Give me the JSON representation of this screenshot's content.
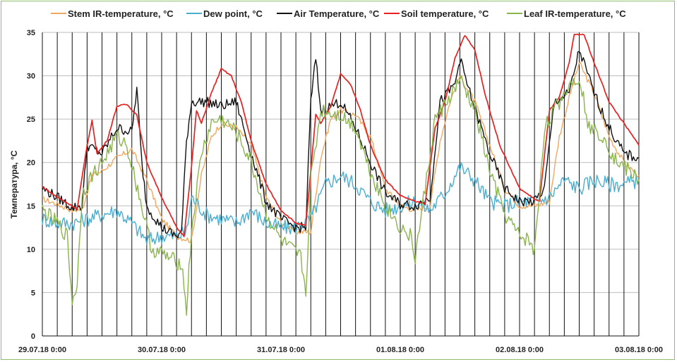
{
  "chart_data": {
    "type": "line",
    "title": "",
    "xlabel": "",
    "ylabel": "Температура, °С",
    "ylim": [
      0,
      35
    ],
    "yticks": [
      0,
      5,
      10,
      15,
      20,
      25,
      30,
      35
    ],
    "xlim": [
      "29.07.18 0:00",
      "03.08.18 0:00"
    ],
    "xtick_labels": [
      "29.07.18 0:00",
      "30.07.18 0:00",
      "31.07.18 0:00",
      "01.08.18 0:00",
      "02.08.18 0:00",
      "03.08.18 0:00"
    ],
    "vertical_grid_every_hours": 3,
    "horizontal_grid": true,
    "legend_position": "top",
    "series": [
      {
        "name": "Stem IR-temperature, °C",
        "color": "#f0a860",
        "points": [
          [
            "29.07.18 0:00",
            15.8
          ],
          [
            "29.07.18 3:00",
            15.2
          ],
          [
            "29.07.18 6:00",
            14.5
          ],
          [
            "29.07.18 8:00",
            14.6
          ],
          [
            "29.07.18 10:00",
            18.5
          ],
          [
            "29.07.18 12:00",
            19.0
          ],
          [
            "29.07.18 15:00",
            20.5
          ],
          [
            "29.07.18 18:00",
            21.5
          ],
          [
            "29.07.18 21:00",
            18.0
          ],
          [
            "30.07.18 0:00",
            13.5
          ],
          [
            "30.07.18 3:00",
            11.5
          ],
          [
            "30.07.18 6:00",
            11.0
          ],
          [
            "30.07.18 8:00",
            18.5
          ],
          [
            "30.07.18 10:00",
            23.0
          ],
          [
            "30.07.18 12:00",
            24.5
          ],
          [
            "30.07.18 15:00",
            24.0
          ],
          [
            "30.07.18 18:00",
            22.0
          ],
          [
            "30.07.18 21:00",
            16.0
          ],
          [
            "31.07.18 0:00",
            13.0
          ],
          [
            "31.07.18 3:00",
            12.0
          ],
          [
            "31.07.18 6:00",
            12.0
          ],
          [
            "31.07.18 8:00",
            20.5
          ],
          [
            "31.07.18 10:00",
            25.0
          ],
          [
            "31.07.18 12:00",
            26.0
          ],
          [
            "31.07.18 15:00",
            25.5
          ],
          [
            "31.07.18 18:00",
            23.0
          ],
          [
            "31.07.18 21:00",
            17.0
          ],
          [
            "01.08.18 0:00",
            15.0
          ],
          [
            "01.08.18 3:00",
            14.5
          ],
          [
            "01.08.18 6:00",
            15.0
          ],
          [
            "01.08.18 8:00",
            22.5
          ],
          [
            "01.08.18 10:00",
            27.0
          ],
          [
            "01.08.18 12:00",
            30.0
          ],
          [
            "01.08.18 15:00",
            27.0
          ],
          [
            "01.08.18 18:00",
            22.0
          ],
          [
            "01.08.18 21:00",
            17.0
          ],
          [
            "02.08.18 0:00",
            15.0
          ],
          [
            "02.08.18 3:00",
            15.0
          ],
          [
            "02.08.18 6:00",
            15.5
          ],
          [
            "02.08.18 8:00",
            23.0
          ],
          [
            "02.08.18 10:00",
            27.5
          ],
          [
            "02.08.18 12:00",
            31.5
          ],
          [
            "02.08.18 15:00",
            28.0
          ],
          [
            "02.08.18 18:00",
            23.0
          ],
          [
            "02.08.18 21:00",
            20.0
          ],
          [
            "03.08.18 0:00",
            18.5
          ]
        ]
      },
      {
        "name": "Dew point, °C",
        "color": "#4aaed0",
        "points": [
          [
            "29.07.18 0:00",
            13.5
          ],
          [
            "29.07.18 3:00",
            13.0
          ],
          [
            "29.07.18 6:00",
            13.0
          ],
          [
            "29.07.18 9:00",
            13.5
          ],
          [
            "29.07.18 12:00",
            14.0
          ],
          [
            "29.07.18 15:00",
            14.5
          ],
          [
            "29.07.18 18:00",
            13.0
          ],
          [
            "29.07.18 21:00",
            11.0
          ],
          [
            "30.07.18 0:00",
            11.5
          ],
          [
            "30.07.18 3:00",
            11.5
          ],
          [
            "30.07.18 5:00",
            12.0
          ],
          [
            "30.07.18 6:00",
            16.0
          ],
          [
            "30.07.18 9:00",
            14.0
          ],
          [
            "30.07.18 12:00",
            13.5
          ],
          [
            "30.07.18 15:00",
            13.0
          ],
          [
            "30.07.18 18:00",
            14.5
          ],
          [
            "30.07.18 21:00",
            13.0
          ],
          [
            "31.07.18 0:00",
            12.5
          ],
          [
            "31.07.18 3:00",
            12.5
          ],
          [
            "31.07.18 6:00",
            13.5
          ],
          [
            "31.07.18 9:00",
            17.5
          ],
          [
            "31.07.18 12:00",
            18.5
          ],
          [
            "31.07.18 15:00",
            17.5
          ],
          [
            "31.07.18 18:00",
            15.5
          ],
          [
            "31.07.18 21:00",
            14.5
          ],
          [
            "01.08.18 0:00",
            15.0
          ],
          [
            "01.08.18 3:00",
            15.5
          ],
          [
            "01.08.18 6:00",
            14.5
          ],
          [
            "01.08.18 9:00",
            16.5
          ],
          [
            "01.08.18 12:00",
            19.5
          ],
          [
            "01.08.18 15:00",
            18.0
          ],
          [
            "01.08.18 18:00",
            15.5
          ],
          [
            "01.08.18 21:00",
            15.0
          ],
          [
            "02.08.18 0:00",
            15.5
          ],
          [
            "02.08.18 3:00",
            15.5
          ],
          [
            "02.08.18 6:00",
            16.0
          ],
          [
            "02.08.18 9:00",
            18.0
          ],
          [
            "02.08.18 12:00",
            17.0
          ],
          [
            "02.08.18 15:00",
            18.0
          ],
          [
            "02.08.18 18:00",
            17.5
          ],
          [
            "02.08.18 21:00",
            17.5
          ],
          [
            "03.08.18 0:00",
            18.0
          ]
        ]
      },
      {
        "name": "Air Temperature, °C",
        "color": "#111111",
        "points": [
          [
            "29.07.18 0:00",
            17.0
          ],
          [
            "29.07.18 3:00",
            16.0
          ],
          [
            "29.07.18 6:00",
            14.8
          ],
          [
            "29.07.18 8:00",
            15.0
          ],
          [
            "29.07.18 9:00",
            22.0
          ],
          [
            "29.07.18 12:00",
            21.0
          ],
          [
            "29.07.18 15:00",
            24.0
          ],
          [
            "29.07.18 18:00",
            23.5
          ],
          [
            "29.07.18 19:00",
            28.5
          ],
          [
            "29.07.18 20:00",
            20.0
          ],
          [
            "29.07.18 21:00",
            15.0
          ],
          [
            "30.07.18 0:00",
            12.5
          ],
          [
            "30.07.18 3:00",
            11.5
          ],
          [
            "30.07.18 4:00",
            12.0
          ],
          [
            "30.07.18 5:00",
            22.5
          ],
          [
            "30.07.18 6:00",
            27.0
          ],
          [
            "30.07.18 9:00",
            27.0
          ],
          [
            "30.07.18 12:00",
            26.5
          ],
          [
            "30.07.18 15:00",
            27.0
          ],
          [
            "30.07.18 18:00",
            21.0
          ],
          [
            "30.07.18 21:00",
            15.5
          ],
          [
            "31.07.18 0:00",
            13.5
          ],
          [
            "31.07.18 3:00",
            12.5
          ],
          [
            "31.07.18 5:00",
            12.5
          ],
          [
            "31.07.18 6:00",
            27.0
          ],
          [
            "31.07.18 7:00",
            32.0
          ],
          [
            "31.07.18 8:00",
            26.0
          ],
          [
            "31.07.18 12:00",
            27.0
          ],
          [
            "31.07.18 15:00",
            24.0
          ],
          [
            "31.07.18 18:00",
            20.0
          ],
          [
            "31.07.18 21:00",
            16.5
          ],
          [
            "01.08.18 0:00",
            15.2
          ],
          [
            "01.08.18 3:00",
            15.0
          ],
          [
            "01.08.18 6:00",
            16.0
          ],
          [
            "01.08.18 8:00",
            27.0
          ],
          [
            "01.08.18 11:00",
            29.0
          ],
          [
            "01.08.18 12:00",
            32.0
          ],
          [
            "01.08.18 14:00",
            28.0
          ],
          [
            "01.08.18 18:00",
            21.0
          ],
          [
            "01.08.18 21:00",
            17.0
          ],
          [
            "02.08.18 0:00",
            15.5
          ],
          [
            "02.08.18 3:00",
            15.5
          ],
          [
            "02.08.18 5:00",
            17.0
          ],
          [
            "02.08.18 7:00",
            27.0
          ],
          [
            "02.08.18 10:00",
            28.0
          ],
          [
            "02.08.18 12:00",
            33.0
          ],
          [
            "02.08.18 15:00",
            28.0
          ],
          [
            "02.08.18 18:00",
            24.0
          ],
          [
            "02.08.18 21:00",
            21.0
          ],
          [
            "03.08.18 0:00",
            20.5
          ]
        ]
      },
      {
        "name": "Soil temperature, °C",
        "color": "#e82020",
        "points": [
          [
            "29.07.18 0:00",
            17.2
          ],
          [
            "29.07.18 3:00",
            16.0
          ],
          [
            "29.07.18 6:00",
            15.0
          ],
          [
            "29.07.18 7:00",
            14.6
          ],
          [
            "29.07.18 9:00",
            22.0
          ],
          [
            "29.07.18 10:00",
            24.8
          ],
          [
            "29.07.18 11:00",
            21.0
          ],
          [
            "29.07.18 13:00",
            22.5
          ],
          [
            "29.07.18 15:00",
            26.5
          ],
          [
            "29.07.18 17:00",
            26.7
          ],
          [
            "29.07.18 19:00",
            25.5
          ],
          [
            "29.07.18 21:00",
            20.0
          ],
          [
            "30.07.18 0:00",
            16.0
          ],
          [
            "30.07.18 3:00",
            12.5
          ],
          [
            "30.07.18 4:30",
            11.5
          ],
          [
            "30.07.18 6:00",
            19.5
          ],
          [
            "30.07.18 7:00",
            26.0
          ],
          [
            "30.07.18 8:00",
            24.5
          ],
          [
            "30.07.18 10:00",
            28.0
          ],
          [
            "30.07.18 12:00",
            30.8
          ],
          [
            "30.07.18 14:00",
            30.0
          ],
          [
            "30.07.18 16:00",
            27.0
          ],
          [
            "30.07.18 18:00",
            22.5
          ],
          [
            "30.07.18 21:00",
            17.5
          ],
          [
            "31.07.18 0:00",
            14.5
          ],
          [
            "31.07.18 3:00",
            13.0
          ],
          [
            "31.07.18 5:00",
            12.7
          ],
          [
            "31.07.18 7:00",
            25.5
          ],
          [
            "31.07.18 8:00",
            24.5
          ],
          [
            "31.07.18 10:00",
            26.5
          ],
          [
            "31.07.18 12:00",
            30.2
          ],
          [
            "31.07.18 14:00",
            29.0
          ],
          [
            "31.07.18 16:00",
            26.0
          ],
          [
            "31.07.18 18:00",
            22.0
          ],
          [
            "31.07.18 21:00",
            18.0
          ],
          [
            "01.08.18 0:00",
            16.2
          ],
          [
            "01.08.18 3:00",
            15.5
          ],
          [
            "01.08.18 5:00",
            15.2
          ],
          [
            "01.08.18 7:00",
            24.0
          ],
          [
            "01.08.18 9:00",
            27.0
          ],
          [
            "01.08.18 11:00",
            32.0
          ],
          [
            "01.08.18 13:00",
            34.7
          ],
          [
            "01.08.18 15:00",
            33.0
          ],
          [
            "01.08.18 17:00",
            28.0
          ],
          [
            "01.08.18 20:00",
            22.0
          ],
          [
            "02.08.18 0:00",
            17.0
          ],
          [
            "02.08.18 3:00",
            15.8
          ],
          [
            "02.08.18 4:00",
            15.5
          ],
          [
            "02.08.18 6:00",
            26.0
          ],
          [
            "02.08.18 8:00",
            27.5
          ],
          [
            "02.08.18 10:00",
            31.5
          ],
          [
            "02.08.18 11:00",
            34.8
          ],
          [
            "02.08.18 13:00",
            34.7
          ],
          [
            "02.08.18 15:00",
            31.5
          ],
          [
            "02.08.18 18:00",
            27.0
          ],
          [
            "02.08.18 21:00",
            24.5
          ],
          [
            "03.08.18 0:00",
            22.0
          ]
        ]
      },
      {
        "name": "Leaf IR-temperature, °C",
        "color": "#8ab44c",
        "points": [
          [
            "29.07.18 0:00",
            14.5
          ],
          [
            "29.07.18 3:00",
            13.0
          ],
          [
            "29.07.18 5:00",
            11.5
          ],
          [
            "29.07.18 6:00",
            4.0
          ],
          [
            "29.07.18 7:00",
            6.0
          ],
          [
            "29.07.18 8:00",
            16.5
          ],
          [
            "29.07.18 10:00",
            18.5
          ],
          [
            "29.07.18 12:00",
            20.0
          ],
          [
            "29.07.18 15:00",
            23.0
          ],
          [
            "29.07.18 17:00",
            22.0
          ],
          [
            "29.07.18 20:00",
            15.0
          ],
          [
            "29.07.18 22:00",
            10.0
          ],
          [
            "30.07.18 0:00",
            9.5
          ],
          [
            "30.07.18 3:00",
            8.5
          ],
          [
            "30.07.18 4:00",
            8.5
          ],
          [
            "30.07.18 5:00",
            3.0
          ],
          [
            "30.07.18 6:00",
            12.0
          ],
          [
            "30.07.18 8:00",
            21.0
          ],
          [
            "30.07.18 10:00",
            24.5
          ],
          [
            "30.07.18 12:00",
            25.0
          ],
          [
            "30.07.18 15:00",
            23.5
          ],
          [
            "30.07.18 18:00",
            20.0
          ],
          [
            "30.07.18 21:00",
            14.0
          ],
          [
            "31.07.18 0:00",
            11.0
          ],
          [
            "31.07.18 3:00",
            9.5
          ],
          [
            "31.07.18 4:00",
            9.0
          ],
          [
            "31.07.18 5:00",
            5.0
          ],
          [
            "31.07.18 6:00",
            18.0
          ],
          [
            "31.07.18 8:00",
            26.0
          ],
          [
            "31.07.18 12:00",
            25.5
          ],
          [
            "31.07.18 15:00",
            24.0
          ],
          [
            "31.07.18 18:00",
            19.0
          ],
          [
            "31.07.18 21:00",
            15.0
          ],
          [
            "01.08.18 0:00",
            12.5
          ],
          [
            "01.08.18 2:00",
            11.5
          ],
          [
            "01.08.18 3:00",
            9.0
          ],
          [
            "01.08.18 5:00",
            17.0
          ],
          [
            "01.08.18 7:00",
            25.0
          ],
          [
            "01.08.18 10:00",
            27.5
          ],
          [
            "01.08.18 12:00",
            29.5
          ],
          [
            "01.08.18 15:00",
            26.0
          ],
          [
            "01.08.18 18:00",
            19.0
          ],
          [
            "01.08.18 21:00",
            14.0
          ],
          [
            "02.08.18 0:00",
            11.5
          ],
          [
            "02.08.18 2:00",
            11.0
          ],
          [
            "02.08.18 3:00",
            9.5
          ],
          [
            "02.08.18 5:00",
            24.0
          ],
          [
            "02.08.18 8:00",
            27.0
          ],
          [
            "02.08.18 10:00",
            29.0
          ],
          [
            "02.08.18 12:00",
            30.0
          ],
          [
            "02.08.18 14:00",
            24.0
          ],
          [
            "02.08.18 17:00",
            23.0
          ],
          [
            "02.08.18 19:00",
            20.5
          ],
          [
            "02.08.18 22:00",
            19.0
          ],
          [
            "03.08.18 0:00",
            18.0
          ]
        ]
      }
    ]
  }
}
